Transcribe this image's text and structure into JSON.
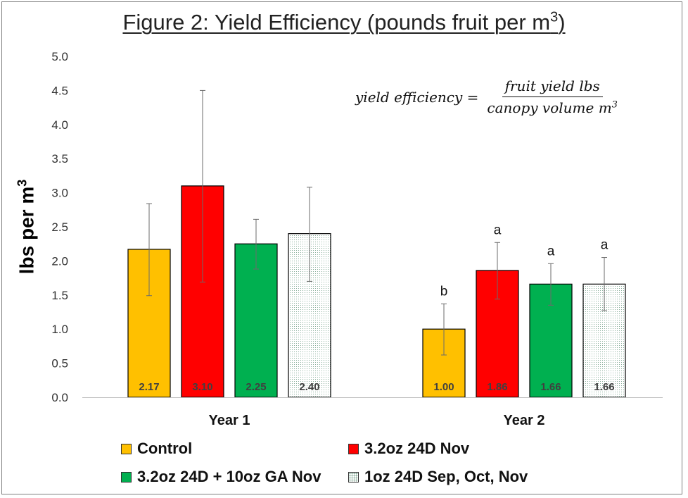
{
  "chart_data": {
    "type": "bar",
    "title_main": "Figure 2: Yield Efficiency (pounds fruit per m",
    "title_sup": "3",
    "title_end": ")",
    "ylabel_main": "lbs per m",
    "ylabel_sup": "3",
    "xlabel": "",
    "ylim": [
      0,
      5.0
    ],
    "yticks": [
      "0.0",
      "0.5",
      "1.0",
      "1.5",
      "2.0",
      "2.5",
      "3.0",
      "3.5",
      "4.0",
      "4.5",
      "5.0"
    ],
    "grid": false,
    "legend_position": "bottom",
    "categories": [
      "Year 1",
      "Year 2"
    ],
    "series": [
      {
        "name": "Control",
        "color": "#FFC000",
        "pattern": "solid",
        "values": [
          2.17,
          1.0
        ],
        "labels": [
          "2.17",
          "1.00"
        ],
        "err_low": [
          1.49,
          0.62
        ],
        "err_high": [
          2.84,
          1.37
        ],
        "letters": [
          "",
          "b"
        ]
      },
      {
        "name": "3.2oz 24D Nov",
        "color": "#FF0000",
        "pattern": "solid",
        "values": [
          3.1,
          1.86
        ],
        "labels": [
          "3.10",
          "1.86"
        ],
        "err_low": [
          1.69,
          1.44
        ],
        "err_high": [
          4.5,
          2.27
        ],
        "letters": [
          "",
          "a"
        ]
      },
      {
        "name": "3.2oz 24D + 10oz GA Nov",
        "color": "#00B050",
        "pattern": "solid",
        "values": [
          2.25,
          1.66
        ],
        "labels": [
          "2.25",
          "1.66"
        ],
        "err_low": [
          1.88,
          1.35
        ],
        "err_high": [
          2.61,
          1.96
        ],
        "letters": [
          "",
          "a"
        ]
      },
      {
        "name": "1oz 24D Sep, Oct, Nov",
        "color": "#FFFFFF",
        "pattern": "dots",
        "values": [
          2.4,
          1.66
        ],
        "labels": [
          "2.40",
          "1.66"
        ],
        "err_low": [
          1.7,
          1.27
        ],
        "err_high": [
          3.08,
          2.05
        ],
        "letters": [
          "",
          "a"
        ]
      }
    ],
    "annotation": {
      "lhs": "yield efficiency =",
      "numerator": "fruit yield lbs",
      "denominator_main": "canopy volume m",
      "denominator_sup": "3"
    }
  }
}
